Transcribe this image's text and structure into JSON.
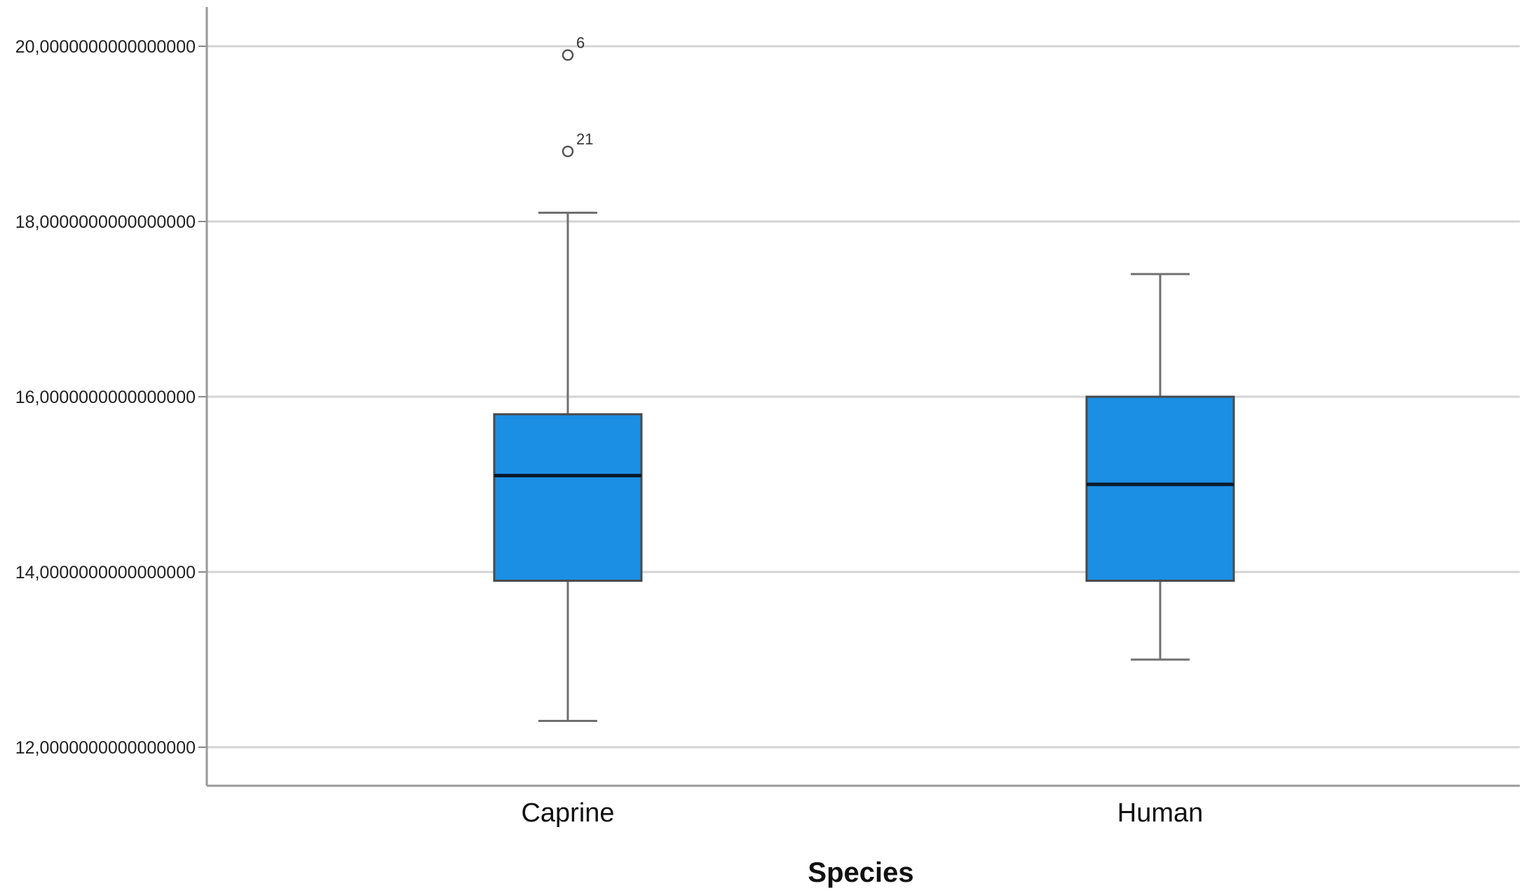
{
  "chart_data": {
    "type": "boxplot",
    "title": "",
    "xlabel": "Species",
    "ylabel": "",
    "ylim": [
      11.6,
      20.45
    ],
    "yticks": [
      12,
      14,
      16,
      18,
      20
    ],
    "ytick_labels": [
      "12,0000000000000000",
      "14,0000000000000000",
      "16,0000000000000000",
      "18,0000000000000000",
      "20,0000000000000000"
    ],
    "grid": true,
    "box_color": "#1a8fe3",
    "categories": [
      "Caprine",
      "Human"
    ],
    "boxes": [
      {
        "category": "Caprine",
        "whisker_low": 12.3,
        "q1": 13.9,
        "median": 15.1,
        "q3": 15.8,
        "whisker_high": 18.1,
        "outliers": [
          {
            "value": 19.9,
            "label": "6"
          },
          {
            "value": 18.8,
            "label": "21"
          }
        ]
      },
      {
        "category": "Human",
        "whisker_low": 13.0,
        "q1": 13.9,
        "median": 15.0,
        "q3": 16.0,
        "whisker_high": 17.4,
        "outliers": []
      }
    ]
  }
}
